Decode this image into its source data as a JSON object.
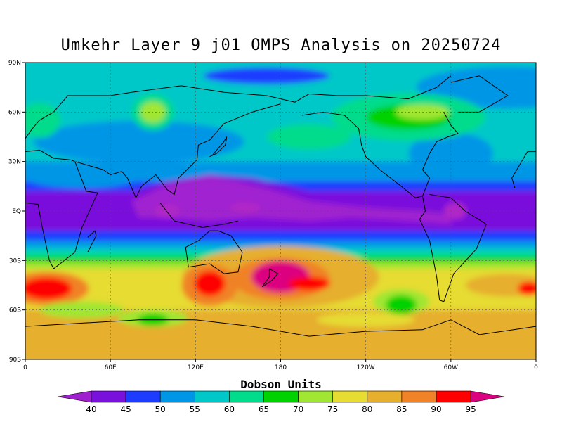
{
  "title": "Umkehr Layer 9 j01 OMPS Analysis on 20250724",
  "colorbar": {
    "title": "Dobson Units",
    "levels": [
      "40",
      "45",
      "50",
      "55",
      "60",
      "65",
      "70",
      "75",
      "80",
      "85",
      "90",
      "95"
    ],
    "colors": [
      "#a020d0",
      "#7a10dc",
      "#1e3cff",
      "#0096e6",
      "#00c8c8",
      "#00dc8c",
      "#00d200",
      "#a0e632",
      "#e6dc32",
      "#e6af2d",
      "#f08228",
      "#ff0000",
      "#dc0080"
    ]
  },
  "chart_data": {
    "type": "heatmap",
    "title": "Umkehr Layer 9 j01 OMPS Analysis on 20250724",
    "projection": "cylindrical equidistant",
    "x_ticks": [
      "0",
      "60E",
      "120E",
      "180",
      "120W",
      "60W",
      "0"
    ],
    "y_ticks": [
      "90N",
      "60N",
      "30N",
      "EQ",
      "30S",
      "60S",
      "90S"
    ],
    "xlim": [
      0,
      360
    ],
    "ylim": [
      -90,
      90
    ],
    "grid": true,
    "units": "Dobson Units",
    "features": [
      {
        "name": "tropical minimum band",
        "lat_range": [
          -15,
          15
        ],
        "value": "40-50"
      },
      {
        "name": "southern subtropical maximum near 180",
        "lat": -40,
        "lon": 180,
        "value": "95+"
      },
      {
        "name": "maximum south of Africa",
        "lat": -45,
        "lon": 20,
        "value": "90-95"
      },
      {
        "name": "maximum south of Australia",
        "lat": -45,
        "lon": 130,
        "value": "90-95"
      },
      {
        "name": "Antarctic region",
        "lat_range": [
          -90,
          -60
        ],
        "value": "75-85"
      },
      {
        "name": "Arctic region",
        "lat_range": [
          60,
          90
        ],
        "value": "55-60"
      }
    ]
  }
}
